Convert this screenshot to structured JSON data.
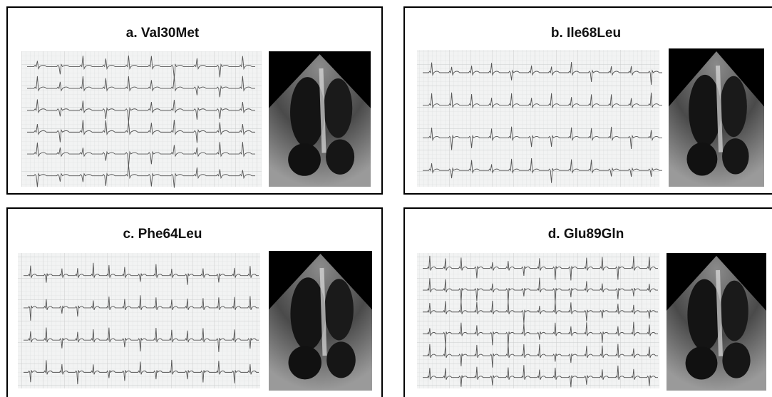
{
  "panels": [
    {
      "title": "a. Val30Met"
    },
    {
      "title": "b. Ile68Leu"
    },
    {
      "title": "c. Phe64Leu"
    },
    {
      "title": "d. Glu89Gln"
    }
  ]
}
